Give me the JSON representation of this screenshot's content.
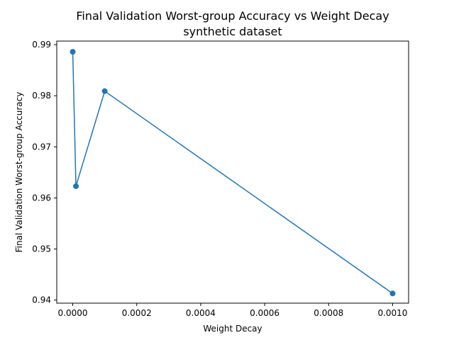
{
  "chart_data": {
    "type": "line",
    "title": "Final Validation Worst-group Accuracy vs Weight Decay",
    "subtitle": "synthetic dataset",
    "xlabel": "Weight Decay",
    "ylabel": "Final Validation Worst-group Accuracy",
    "xlim": [
      -5e-05,
      0.00105
    ],
    "ylim": [
      0.9394,
      0.9907
    ],
    "x_ticks": [
      0.0,
      0.0002,
      0.0004,
      0.0006,
      0.0008,
      0.001
    ],
    "x_tick_labels": [
      "0.0000",
      "0.0002",
      "0.0004",
      "0.0006",
      "0.0008",
      "0.0010"
    ],
    "y_ticks": [
      0.94,
      0.95,
      0.96,
      0.97,
      0.98,
      0.99
    ],
    "y_tick_labels": [
      "0.94",
      "0.95",
      "0.96",
      "0.97",
      "0.98",
      "0.99"
    ],
    "grid": false,
    "legend": "none",
    "series": [
      {
        "color": "#1f77b4",
        "marker": "circle",
        "x": [
          0.0,
          1e-05,
          0.0001,
          0.001
        ],
        "y": [
          0.9886,
          0.9623,
          0.9809,
          0.9413
        ]
      }
    ]
  }
}
